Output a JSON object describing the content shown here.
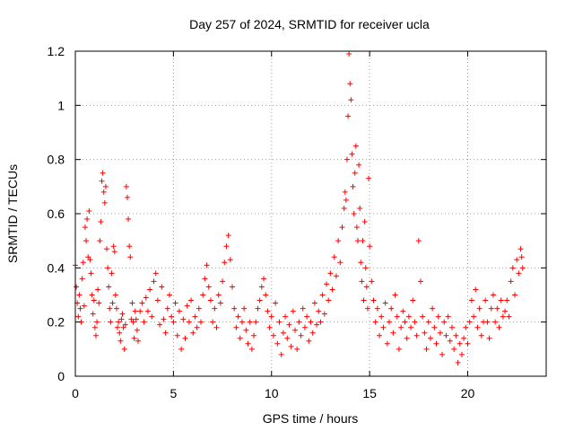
{
  "chart_data": {
    "type": "scatter",
    "title": "Day 257 of 2024, SRMTID for receiver ucla",
    "xlabel": "GPS time / hours",
    "ylabel": "SRMTID / TECUs",
    "xlim": [
      0,
      24
    ],
    "ylim": [
      0,
      1.2
    ],
    "x_ticks": [
      0,
      5,
      10,
      15,
      20
    ],
    "x_tick_labels": [
      "0",
      "5",
      "10",
      "15",
      "20"
    ],
    "y_ticks": [
      0,
      0.2,
      0.4,
      0.6,
      0.8,
      1.0,
      1.2
    ],
    "y_tick_labels": [
      "0",
      "0.2",
      "0.4",
      "0.6",
      "0.8",
      "1",
      "1.2"
    ],
    "grid": true,
    "marker": "plus",
    "color": "#ff0000",
    "series": [
      {
        "name": "SRMTID",
        "points": [
          [
            0.0,
            0.41
          ],
          [
            0.05,
            0.33
          ],
          [
            0.1,
            0.27
          ],
          [
            0.15,
            0.22
          ],
          [
            0.2,
            0.3
          ],
          [
            0.25,
            0.25
          ],
          [
            0.3,
            0.2
          ],
          [
            0.35,
            0.36
          ],
          [
            0.4,
            0.42
          ],
          [
            0.45,
            0.26
          ],
          [
            0.5,
            0.55
          ],
          [
            0.55,
            0.5
          ],
          [
            0.6,
            0.58
          ],
          [
            0.65,
            0.44
          ],
          [
            0.7,
            0.61
          ],
          [
            0.75,
            0.43
          ],
          [
            0.8,
            0.38
          ],
          [
            0.85,
            0.3
          ],
          [
            0.9,
            0.23
          ],
          [
            0.95,
            0.28
          ],
          [
            1.0,
            0.18
          ],
          [
            1.05,
            0.15
          ],
          [
            1.1,
            0.2
          ],
          [
            1.15,
            0.32
          ],
          [
            1.2,
            0.27
          ],
          [
            1.25,
            0.5
          ],
          [
            1.3,
            0.57
          ],
          [
            1.35,
            0.72
          ],
          [
            1.4,
            0.75
          ],
          [
            1.45,
            0.68
          ],
          [
            1.5,
            0.64
          ],
          [
            1.55,
            0.7
          ],
          [
            1.6,
            0.47
          ],
          [
            1.65,
            0.4
          ],
          [
            1.7,
            0.33
          ],
          [
            1.75,
            0.25
          ],
          [
            1.8,
            0.2
          ],
          [
            1.85,
            0.38
          ],
          [
            1.9,
            0.27
          ],
          [
            1.95,
            0.48
          ],
          [
            2.0,
            0.46
          ],
          [
            2.05,
            0.3
          ],
          [
            2.1,
            0.25
          ],
          [
            2.15,
            0.18
          ],
          [
            2.2,
            0.2
          ],
          [
            2.25,
            0.16
          ],
          [
            2.3,
            0.13
          ],
          [
            2.35,
            0.21
          ],
          [
            2.4,
            0.23
          ],
          [
            2.45,
            0.18
          ],
          [
            2.5,
            0.1
          ],
          [
            2.55,
            0.19
          ],
          [
            2.6,
            0.7
          ],
          [
            2.65,
            0.66
          ],
          [
            2.7,
            0.58
          ],
          [
            2.75,
            0.48
          ],
          [
            2.8,
            0.44
          ],
          [
            2.85,
            0.21
          ],
          [
            2.9,
            0.27
          ],
          [
            2.95,
            0.2
          ],
          [
            3.0,
            0.14
          ],
          [
            3.05,
            0.24
          ],
          [
            3.1,
            0.21
          ],
          [
            3.15,
            0.17
          ],
          [
            3.2,
            0.13
          ],
          [
            3.3,
            0.24
          ],
          [
            3.4,
            0.27
          ],
          [
            3.5,
            0.2
          ],
          [
            3.6,
            0.29
          ],
          [
            3.7,
            0.24
          ],
          [
            3.8,
            0.32
          ],
          [
            3.9,
            0.22
          ],
          [
            4.0,
            0.35
          ],
          [
            4.1,
            0.38
          ],
          [
            4.2,
            0.28
          ],
          [
            4.3,
            0.19
          ],
          [
            4.4,
            0.33
          ],
          [
            4.5,
            0.21
          ],
          [
            4.6,
            0.16
          ],
          [
            4.7,
            0.25
          ],
          [
            4.8,
            0.3
          ],
          [
            4.9,
            0.22
          ],
          [
            5.0,
            0.2
          ],
          [
            5.1,
            0.27
          ],
          [
            5.2,
            0.15
          ],
          [
            5.3,
            0.24
          ],
          [
            5.4,
            0.1
          ],
          [
            5.5,
            0.21
          ],
          [
            5.6,
            0.14
          ],
          [
            5.7,
            0.26
          ],
          [
            5.8,
            0.2
          ],
          [
            5.9,
            0.28
          ],
          [
            6.0,
            0.16
          ],
          [
            6.1,
            0.22
          ],
          [
            6.2,
            0.18
          ],
          [
            6.3,
            0.25
          ],
          [
            6.4,
            0.2
          ],
          [
            6.5,
            0.3
          ],
          [
            6.6,
            0.36
          ],
          [
            6.7,
            0.41
          ],
          [
            6.8,
            0.33
          ],
          [
            6.9,
            0.28
          ],
          [
            7.0,
            0.2
          ],
          [
            7.1,
            0.25
          ],
          [
            7.2,
            0.18
          ],
          [
            7.3,
            0.3
          ],
          [
            7.4,
            0.27
          ],
          [
            7.5,
            0.35
          ],
          [
            7.6,
            0.42
          ],
          [
            7.7,
            0.48
          ],
          [
            7.8,
            0.52
          ],
          [
            7.9,
            0.43
          ],
          [
            8.0,
            0.33
          ],
          [
            8.1,
            0.25
          ],
          [
            8.2,
            0.18
          ],
          [
            8.3,
            0.22
          ],
          [
            8.4,
            0.14
          ],
          [
            8.5,
            0.2
          ],
          [
            8.6,
            0.25
          ],
          [
            8.7,
            0.17
          ],
          [
            8.8,
            0.12
          ],
          [
            8.9,
            0.2
          ],
          [
            9.0,
            0.1
          ],
          [
            9.1,
            0.15
          ],
          [
            9.2,
            0.2
          ],
          [
            9.3,
            0.25
          ],
          [
            9.4,
            0.28
          ],
          [
            9.5,
            0.33
          ],
          [
            9.6,
            0.36
          ],
          [
            9.7,
            0.3
          ],
          [
            9.8,
            0.24
          ],
          [
            9.9,
            0.18
          ],
          [
            10.0,
            0.22
          ],
          [
            10.1,
            0.15
          ],
          [
            10.2,
            0.27
          ],
          [
            10.3,
            0.12
          ],
          [
            10.4,
            0.2
          ],
          [
            10.5,
            0.08
          ],
          [
            10.6,
            0.16
          ],
          [
            10.7,
            0.22
          ],
          [
            10.8,
            0.14
          ],
          [
            10.9,
            0.19
          ],
          [
            11.0,
            0.11
          ],
          [
            11.1,
            0.24
          ],
          [
            11.2,
            0.17
          ],
          [
            11.3,
            0.1
          ],
          [
            11.4,
            0.2
          ],
          [
            11.5,
            0.15
          ],
          [
            11.6,
            0.25
          ],
          [
            11.7,
            0.18
          ],
          [
            11.8,
            0.22
          ],
          [
            11.9,
            0.13
          ],
          [
            12.0,
            0.2
          ],
          [
            12.1,
            0.16
          ],
          [
            12.2,
            0.27
          ],
          [
            12.3,
            0.19
          ],
          [
            12.4,
            0.24
          ],
          [
            12.5,
            0.2
          ],
          [
            12.6,
            0.3
          ],
          [
            12.7,
            0.23
          ],
          [
            12.8,
            0.34
          ],
          [
            12.9,
            0.28
          ],
          [
            13.0,
            0.38
          ],
          [
            13.1,
            0.32
          ],
          [
            13.2,
            0.44
          ],
          [
            13.3,
            0.37
          ],
          [
            13.4,
            0.5
          ],
          [
            13.5,
            0.42
          ],
          [
            13.6,
            0.55
          ],
          [
            13.7,
            0.62
          ],
          [
            13.75,
            0.68
          ],
          [
            13.8,
            0.65
          ],
          [
            13.85,
            0.8
          ],
          [
            13.9,
            0.96
          ],
          [
            13.95,
            1.19
          ],
          [
            14.0,
            1.08
          ],
          [
            14.05,
            1.02
          ],
          [
            14.1,
            0.82
          ],
          [
            14.15,
            0.7
          ],
          [
            14.2,
            0.6
          ],
          [
            14.25,
            0.75
          ],
          [
            14.3,
            0.85
          ],
          [
            14.35,
            0.55
          ],
          [
            14.4,
            0.5
          ],
          [
            14.45,
            0.78
          ],
          [
            14.5,
            0.62
          ],
          [
            14.55,
            0.42
          ],
          [
            14.6,
            0.35
          ],
          [
            14.65,
            0.5
          ],
          [
            14.7,
            0.28
          ],
          [
            14.75,
            0.57
          ],
          [
            14.8,
            0.4
          ],
          [
            14.85,
            0.33
          ],
          [
            14.9,
            0.25
          ],
          [
            14.95,
            0.73
          ],
          [
            15.0,
            0.48
          ],
          [
            15.1,
            0.35
          ],
          [
            15.2,
            0.28
          ],
          [
            15.3,
            0.2
          ],
          [
            15.4,
            0.25
          ],
          [
            15.5,
            0.15
          ],
          [
            15.6,
            0.22
          ],
          [
            15.7,
            0.18
          ],
          [
            15.8,
            0.27
          ],
          [
            15.9,
            0.12
          ],
          [
            16.0,
            0.2
          ],
          [
            16.1,
            0.25
          ],
          [
            16.2,
            0.16
          ],
          [
            16.3,
            0.3
          ],
          [
            16.4,
            0.22
          ],
          [
            16.5,
            0.1
          ],
          [
            16.6,
            0.18
          ],
          [
            16.7,
            0.24
          ],
          [
            16.8,
            0.2
          ],
          [
            16.9,
            0.14
          ],
          [
            17.0,
            0.22
          ],
          [
            17.1,
            0.18
          ],
          [
            17.2,
            0.28
          ],
          [
            17.3,
            0.2
          ],
          [
            17.4,
            0.15
          ],
          [
            17.5,
            0.5
          ],
          [
            17.6,
            0.35
          ],
          [
            17.7,
            0.22
          ],
          [
            17.8,
            0.16
          ],
          [
            17.9,
            0.1
          ],
          [
            18.0,
            0.2
          ],
          [
            18.1,
            0.14
          ],
          [
            18.2,
            0.25
          ],
          [
            18.3,
            0.18
          ],
          [
            18.4,
            0.12
          ],
          [
            18.5,
            0.22
          ],
          [
            18.6,
            0.16
          ],
          [
            18.7,
            0.08
          ],
          [
            18.8,
            0.2
          ],
          [
            18.9,
            0.15
          ],
          [
            19.0,
            0.22
          ],
          [
            19.1,
            0.13
          ],
          [
            19.2,
            0.18
          ],
          [
            19.3,
            0.1
          ],
          [
            19.4,
            0.15
          ],
          [
            19.5,
            0.05
          ],
          [
            19.6,
            0.12
          ],
          [
            19.7,
            0.08
          ],
          [
            19.8,
            0.14
          ],
          [
            19.9,
            0.18
          ],
          [
            20.0,
            0.12
          ],
          [
            20.1,
            0.2
          ],
          [
            20.2,
            0.28
          ],
          [
            20.3,
            0.22
          ],
          [
            20.4,
            0.32
          ],
          [
            20.5,
            0.18
          ],
          [
            20.6,
            0.25
          ],
          [
            20.7,
            0.15
          ],
          [
            20.8,
            0.2
          ],
          [
            20.9,
            0.28
          ],
          [
            21.0,
            0.2
          ],
          [
            21.1,
            0.14
          ],
          [
            21.2,
            0.25
          ],
          [
            21.3,
            0.3
          ],
          [
            21.4,
            0.2
          ],
          [
            21.5,
            0.25
          ],
          [
            21.6,
            0.18
          ],
          [
            21.7,
            0.28
          ],
          [
            21.8,
            0.22
          ],
          [
            21.9,
            0.24
          ],
          [
            22.0,
            0.28
          ],
          [
            22.1,
            0.22
          ],
          [
            22.2,
            0.35
          ],
          [
            22.3,
            0.4
          ],
          [
            22.4,
            0.3
          ],
          [
            22.5,
            0.43
          ],
          [
            22.6,
            0.38
          ],
          [
            22.7,
            0.47
          ],
          [
            22.75,
            0.44
          ],
          [
            22.8,
            0.4
          ]
        ]
      }
    ]
  }
}
